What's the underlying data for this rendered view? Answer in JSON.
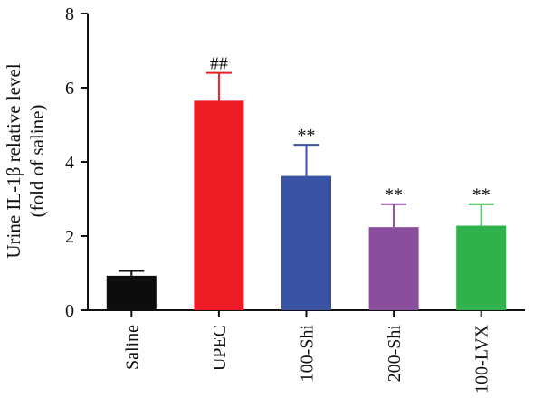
{
  "chart_data": {
    "type": "bar",
    "ylabel": "Urine IL-1β relative level",
    "ylabel_line2": "(fold of saline)",
    "ylim": [
      0,
      8
    ],
    "yticks": [
      "0",
      "2",
      "4",
      "6",
      "8"
    ],
    "categories": [
      "Saline",
      "UPEC",
      "100-Shi",
      "200-Shi",
      "100-LVX"
    ],
    "values": [
      0.93,
      5.65,
      3.62,
      2.24,
      2.28
    ],
    "errors": [
      0.13,
      0.75,
      0.84,
      0.62,
      0.58
    ],
    "significance": [
      "",
      "##",
      "**",
      "**",
      "**"
    ],
    "colors": [
      "#0d0d0d",
      "#ee1c25",
      "#3853a4",
      "#8b4d9e",
      "#2fb24c"
    ],
    "grid": false,
    "legend": "none"
  }
}
